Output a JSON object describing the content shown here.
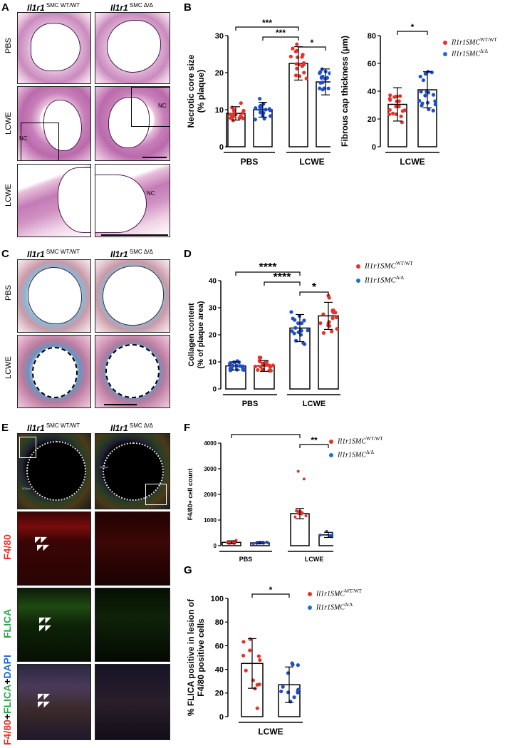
{
  "panels": {
    "A": "A",
    "B": "B",
    "C": "C",
    "D": "D",
    "E": "E",
    "F": "F",
    "G": "G"
  },
  "genotypes": {
    "wt_gene": "Il1r1",
    "wt_sup": " SMC WT/WT",
    "ko_gene": "Il1r1",
    "ko_sup": " SMC Δ/Δ"
  },
  "rows": {
    "pbs": "PBS",
    "lcwe": "LCWE",
    "f480": "F4/80",
    "flica": "FLICA",
    "merge_red": "F4/80",
    "merge_plus1": "+",
    "merge_green": "FLICA",
    "merge_plus2": "+",
    "merge_blue": "DAPI"
  },
  "annotations": {
    "nc": "NC",
    "scale_200": "200μm"
  },
  "legend": {
    "wt_label": "Il1r1SMC",
    "wt_sup": "WT/WT",
    "ko_label": "Il1r1SMC",
    "ko_sup": "Δ/Δ"
  },
  "colors": {
    "wt": "#e8312a",
    "ko": "#1f4fc8"
  },
  "chart_data": [
    {
      "id": "B1",
      "type": "bar",
      "ylabel": "Necrotic core size\n(% plaque)",
      "ylim": [
        0,
        30
      ],
      "yticks": [
        0,
        10,
        20,
        30
      ],
      "groups": [
        "PBS",
        "LCWE"
      ],
      "series": [
        {
          "name": "Il1r1SMC WT/WT",
          "values": [
            9,
            22.5
          ],
          "errors": [
            1.8,
            4.5
          ]
        },
        {
          "name": "Il1r1SMC Δ/Δ",
          "values": [
            10,
            17.5
          ],
          "errors": [
            2,
            3.5
          ]
        }
      ],
      "significance": [
        {
          "from": 0,
          "to": 2,
          "label": "***"
        },
        {
          "from": 1,
          "to": 2,
          "label": "***"
        },
        {
          "from": 2,
          "to": 3,
          "label": "*"
        }
      ]
    },
    {
      "id": "B2",
      "type": "bar",
      "ylabel": "Fibrous cap thickness (μm)",
      "ylim": [
        0,
        80
      ],
      "yticks": [
        0,
        20,
        40,
        60,
        80
      ],
      "groups": [
        "LCWE"
      ],
      "series": [
        {
          "name": "Il1r1SMC WT/WT",
          "values": [
            30.5
          ],
          "errors": [
            12
          ]
        },
        {
          "name": "Il1r1SMC Δ/Δ",
          "values": [
            41
          ],
          "errors": [
            13
          ]
        }
      ],
      "significance": [
        {
          "from": 0,
          "to": 1,
          "label": "*"
        }
      ]
    },
    {
      "id": "D",
      "type": "bar",
      "ylabel": "Collagen content\n(% of plaque area)",
      "ylim": [
        0,
        40
      ],
      "yticks": [
        0,
        10,
        20,
        30,
        40
      ],
      "groups": [
        "PBS",
        "LCWE"
      ],
      "series": [
        {
          "name": "Il1r1SMC Δ/Δ",
          "values": [
            8.5,
            22.5
          ],
          "errors": [
            1.5,
            5
          ]
        },
        {
          "name": "Il1r1SMC WT/WT",
          "values": [
            8.5,
            27
          ],
          "errors": [
            2,
            5
          ]
        }
      ],
      "significance": [
        {
          "from": 0,
          "to": 2,
          "label": "****"
        },
        {
          "from": 1,
          "to": 2,
          "label": "****"
        },
        {
          "from": 2,
          "to": 3,
          "label": "*"
        }
      ]
    },
    {
      "id": "F",
      "type": "bar",
      "ylabel": "F4/80+ cell count",
      "ylim": [
        0,
        4000
      ],
      "yticks": [
        0,
        1000,
        2000,
        3000,
        4000
      ],
      "groups": [
        "PBS",
        "LCWE"
      ],
      "series": [
        {
          "name": "Il1r1SMC WT/WT",
          "values": [
            130,
            1250
          ],
          "errors": [
            60,
            200
          ]
        },
        {
          "name": "Il1r1SMC Δ/Δ",
          "values": [
            110,
            420
          ],
          "errors": [
            40,
            100
          ]
        }
      ],
      "significance": [
        {
          "from": 0,
          "to": 2,
          "label": "***"
        },
        {
          "from": 2,
          "to": 3,
          "label": "**"
        }
      ]
    },
    {
      "id": "G",
      "type": "bar",
      "ylabel": "% FLICA positive in lesion of\nF4/80 positive cells",
      "ylim": [
        0,
        100
      ],
      "yticks": [
        0,
        20,
        40,
        60,
        80,
        100
      ],
      "groups": [
        "LCWE"
      ],
      "series": [
        {
          "name": "Il1r1SMC WT/WT",
          "values": [
            45
          ],
          "errors": [
            21
          ]
        },
        {
          "name": "Il1r1SMC Δ/Δ",
          "values": [
            27
          ],
          "errors": [
            15
          ]
        }
      ],
      "significance": [
        {
          "from": 0,
          "to": 1,
          "label": "*"
        }
      ]
    }
  ]
}
